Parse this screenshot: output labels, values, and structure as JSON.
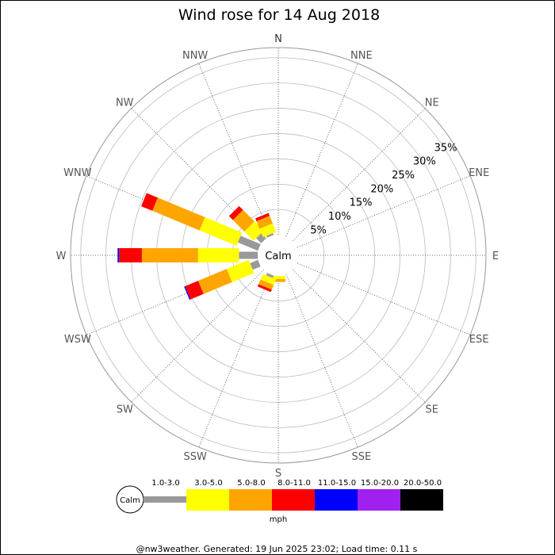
{
  "chart_data": {
    "type": "wind_rose",
    "title": "Wind rose for 14 Aug 2018",
    "calm_label": "Calm",
    "directions": [
      "N",
      "NNE",
      "NE",
      "ENE",
      "E",
      "ESE",
      "SE",
      "SSE",
      "S",
      "SSW",
      "SW",
      "WSW",
      "W",
      "WNW",
      "NW",
      "NNW"
    ],
    "radial_ticks": [
      5,
      10,
      15,
      20,
      25,
      30,
      35
    ],
    "radial_tick_labels": [
      "5%",
      "10%",
      "15%",
      "20%",
      "25%",
      "30%",
      "35%"
    ],
    "radial_max": 37,
    "speed_bins": [
      "1.0-3.0",
      "3.0-5.0",
      "5.0-8.0",
      "8.0-11.0",
      "11.0-15.0",
      "15.0-20.0",
      "20.0-50.0"
    ],
    "speed_unit": "mph",
    "bin_colors": [
      "#999999",
      "#ffff00",
      "#ffa500",
      "#ff0000",
      "#0000ff",
      "#a020f0",
      "#000000"
    ],
    "series": [
      {
        "direction": "N",
        "values": [
          0,
          0,
          0,
          0,
          0,
          0,
          0
        ]
      },
      {
        "direction": "NNE",
        "values": [
          0,
          0,
          0,
          0,
          0,
          0,
          0
        ]
      },
      {
        "direction": "NE",
        "values": [
          0,
          0,
          0,
          0,
          0,
          0,
          0
        ]
      },
      {
        "direction": "ENE",
        "values": [
          0,
          0,
          0,
          0,
          0,
          0,
          0
        ]
      },
      {
        "direction": "E",
        "values": [
          0,
          0,
          0,
          0,
          0,
          0,
          0
        ]
      },
      {
        "direction": "ESE",
        "values": [
          0,
          0,
          0,
          0,
          0,
          0,
          0
        ]
      },
      {
        "direction": "SE",
        "values": [
          0,
          0,
          0,
          0,
          0,
          0,
          0
        ]
      },
      {
        "direction": "SSE",
        "values": [
          0,
          0,
          0,
          0,
          0,
          0,
          0
        ]
      },
      {
        "direction": "S",
        "values": [
          0,
          0.6,
          0.6,
          0,
          0,
          0,
          0
        ]
      },
      {
        "direction": "SSW",
        "values": [
          0.5,
          1.2,
          1.0,
          0.5,
          0,
          0,
          0
        ]
      },
      {
        "direction": "SW",
        "values": [
          0,
          0,
          0,
          0,
          0,
          0,
          0
        ]
      },
      {
        "direction": "WSW",
        "values": [
          1.7,
          4.7,
          6.1,
          2.8,
          0.2,
          0,
          0
        ]
      },
      {
        "direction": "W",
        "values": [
          3.7,
          8.1,
          11.1,
          4.5,
          0.3,
          0,
          0
        ]
      },
      {
        "direction": "WNW",
        "values": [
          4.3,
          7.9,
          10.1,
          2.4,
          0,
          0,
          0
        ]
      },
      {
        "direction": "NW",
        "values": [
          1.4,
          2.6,
          3.2,
          1.1,
          0,
          0,
          0
        ]
      },
      {
        "direction": "NNW",
        "values": [
          0.4,
          1.8,
          1.6,
          0.6,
          0,
          0,
          0
        ]
      }
    ]
  },
  "footer": "@nw3weather. Generated: 19 Jun 2025 23:02; Load time: 0.11 s"
}
